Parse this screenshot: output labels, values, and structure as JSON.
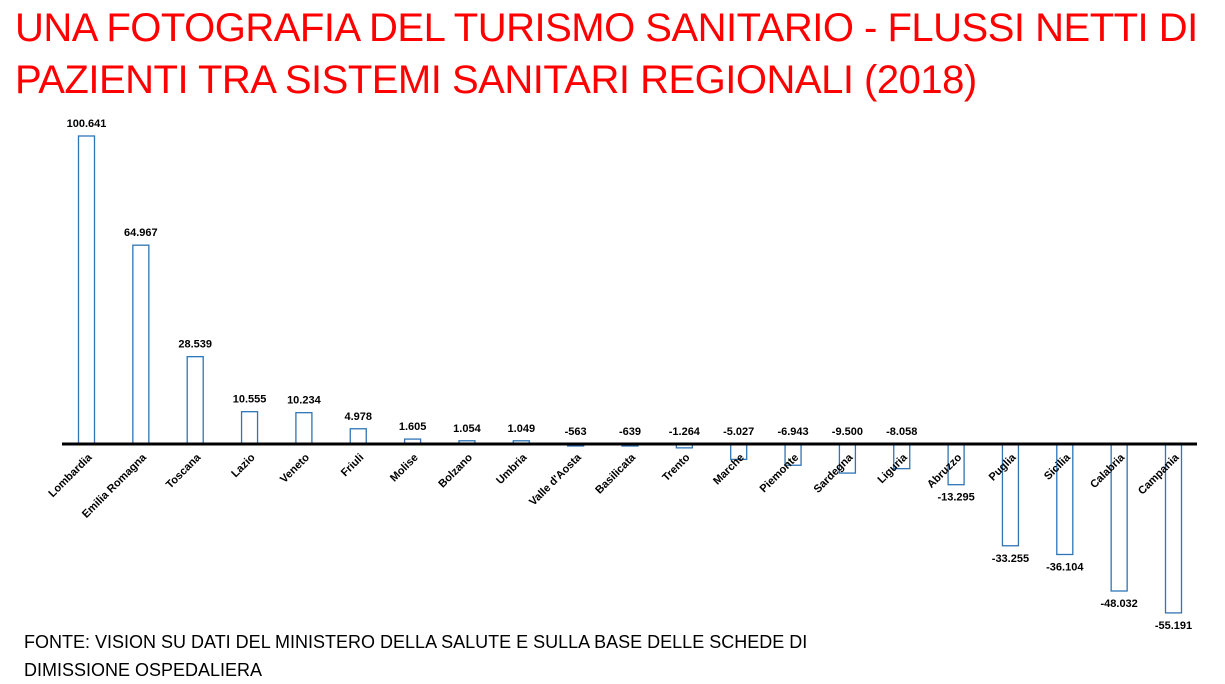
{
  "title_lines": [
    "UNA FOTOGRAFIA DEL TURISMO SANITARIO - FLUSSI NETTI DI",
    "PAZIENTI TRA SISTEMI SANITARI REGIONALI (2018)"
  ],
  "source_lines": [
    "FONTE: VISION SU DATI DEL MINISTERO DELLA SALUTE E SULLA BASE DELLE SCHEDE DI",
    "DIMISSIONE OSPEDALIERA"
  ],
  "colors": {
    "title": "#ff0000",
    "bar_stroke": "#2e75b6",
    "axis": "#000000"
  },
  "chart_data": {
    "type": "bar",
    "title": "UNA FOTOGRAFIA DEL TURISMO SANITARIO - FLUSSI NETTI DI PAZIENTI TRA SISTEMI SANITARI REGIONALI (2018)",
    "categories": [
      "Lombardia",
      "Emilia Romagna",
      "Toscana",
      "Lazio",
      "Veneto",
      "Friuli",
      "Molise",
      "Bolzano",
      "Umbria",
      "Valle d'Aosta",
      "Basilicata",
      "Trento",
      "Marche",
      "Piemonte",
      "Sardegna",
      "Liguria",
      "Abruzzo",
      "Puglia",
      "Sicilia",
      "Calabria",
      "Campania"
    ],
    "values": [
      100641,
      64967,
      28539,
      10555,
      10234,
      4978,
      1605,
      1054,
      1049,
      -563,
      -639,
      -1264,
      -5027,
      -6943,
      -9500,
      -8058,
      -13295,
      -33255,
      -36104,
      -48032,
      -55191
    ],
    "data_labels": [
      "100.641",
      "64.967",
      "28.539",
      "10.555",
      "10.234",
      "4.978",
      "1.605",
      "1.054",
      "1.049",
      "-563",
      "-639",
      "-1.264",
      "-5.027",
      "-6.943",
      "-9.500",
      "-8.058",
      "-13.295",
      "-33.255",
      "-36.104",
      "-48.032",
      "-55.191"
    ],
    "xlabel": "",
    "ylabel": "",
    "ylim": [
      -55191,
      100641
    ],
    "grid": false,
    "legend": "none"
  }
}
